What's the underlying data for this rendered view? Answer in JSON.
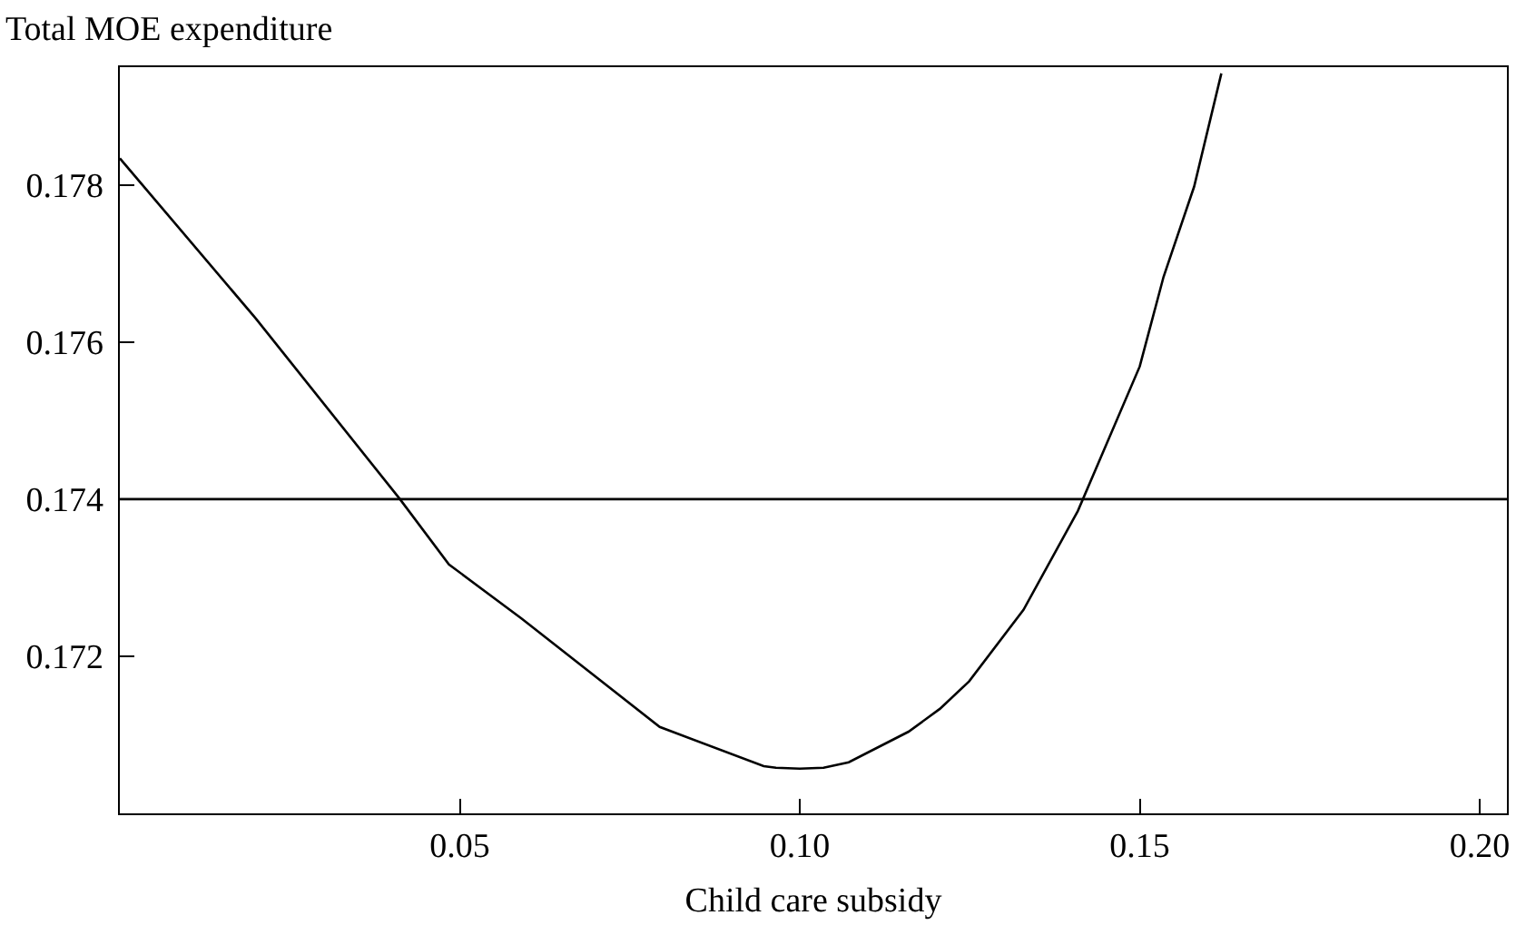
{
  "chart_data": {
    "type": "line",
    "ylabel": "Total MOE expenditure",
    "xlabel": "Child care subsidy",
    "xlim": [
      0,
      0.204
    ],
    "xticks": [
      {
        "value": 0.05,
        "label": "0.05"
      },
      {
        "value": 0.1,
        "label": "0.10"
      },
      {
        "value": 0.15,
        "label": "0.15"
      },
      {
        "value": 0.2,
        "label": "0.20"
      }
    ],
    "ylim": [
      0.17,
      0.1795
    ],
    "yticks": [
      0.172,
      0.174,
      0.176,
      0.178
    ],
    "grid": false,
    "marker": "none",
    "line_style": "solid",
    "ref_lines": [
      {
        "axis": "y",
        "value": 0.174,
        "color": "#000000"
      }
    ],
    "series": [
      {
        "color": "#000000",
        "x": [
          0,
          0.02,
          0.0412,
          0.0484,
          0.0591,
          0.0794,
          0.0947,
          0.0965,
          0.1,
          0.1035,
          0.1072,
          0.116,
          0.1206,
          0.1249,
          0.1329,
          0.1409,
          0.15,
          0.1535,
          0.158,
          0.162
        ],
        "values": [
          0.17834,
          0.1763,
          0.174,
          0.17317,
          0.17248,
          0.1711,
          0.1706,
          0.17058,
          0.17057,
          0.17058,
          0.17065,
          0.17104,
          0.17133,
          0.17168,
          0.17259,
          0.17385,
          0.17569,
          0.17683,
          0.17798,
          0.17942
        ]
      }
    ]
  }
}
